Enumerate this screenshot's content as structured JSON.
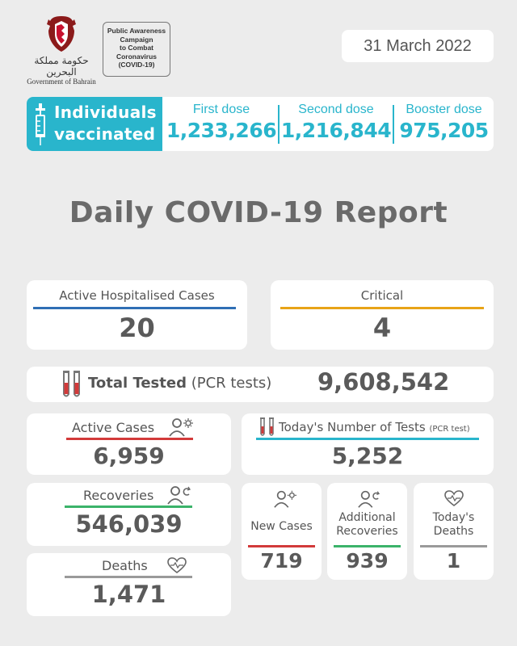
{
  "header": {
    "logo_arabic": "حكومة مملكة البحرين",
    "logo_english": "Government of Bahrain",
    "campaign_lines": [
      "Public Awareness",
      "Campaign",
      "to Combat",
      "Coronavirus",
      "(COVID-19)"
    ],
    "date": "31 March 2022"
  },
  "vaccination": {
    "title_line1": "Individuals",
    "title_line2": "vaccinated",
    "first_dose_label": "First dose",
    "first_dose_value": "1,233,266",
    "second_dose_label": "Second dose",
    "second_dose_value": "1,216,844",
    "booster_dose_label": "Booster dose",
    "booster_dose_value": "975,205",
    "accent_color": "#29b5cc"
  },
  "report_title": "Daily COVID-19 Report",
  "stats": {
    "hospitalised": {
      "label": "Active Hospitalised Cases",
      "value": "20",
      "color": "#2f6fb5"
    },
    "critical": {
      "label": "Critical",
      "value": "4",
      "color": "#e8a317"
    },
    "total_tested": {
      "label_bold": "Total Tested",
      "label_suffix": "(PCR tests)",
      "value": "9,608,542"
    },
    "active_cases": {
      "label": "Active Cases",
      "value": "6,959",
      "color": "#d23a3a"
    },
    "todays_tests": {
      "label": "Today's Number of Tests",
      "label_suffix": "(PCR test)",
      "value": "5,252",
      "color": "#29b5cc"
    },
    "recoveries": {
      "label": "Recoveries",
      "value": "546,039",
      "color": "#3bb36a"
    },
    "new_cases": {
      "label": "New Cases",
      "value": "719",
      "color": "#d23a3a"
    },
    "additional_recoveries": {
      "label_line1": "Additional",
      "label_line2": "Recoveries",
      "value": "939",
      "color": "#3bb36a"
    },
    "todays_deaths": {
      "label_line1": "Today's",
      "label_line2": "Deaths",
      "value": "1",
      "color": "#9a9a9a"
    },
    "deaths": {
      "label": "Deaths",
      "value": "1,471",
      "color": "#9a9a9a"
    }
  },
  "icons": [
    "bahrain-emblem-icon",
    "syringe-icon",
    "test-tubes-icon",
    "person-virus-icon",
    "person-recovery-icon",
    "heartbeat-icon"
  ]
}
